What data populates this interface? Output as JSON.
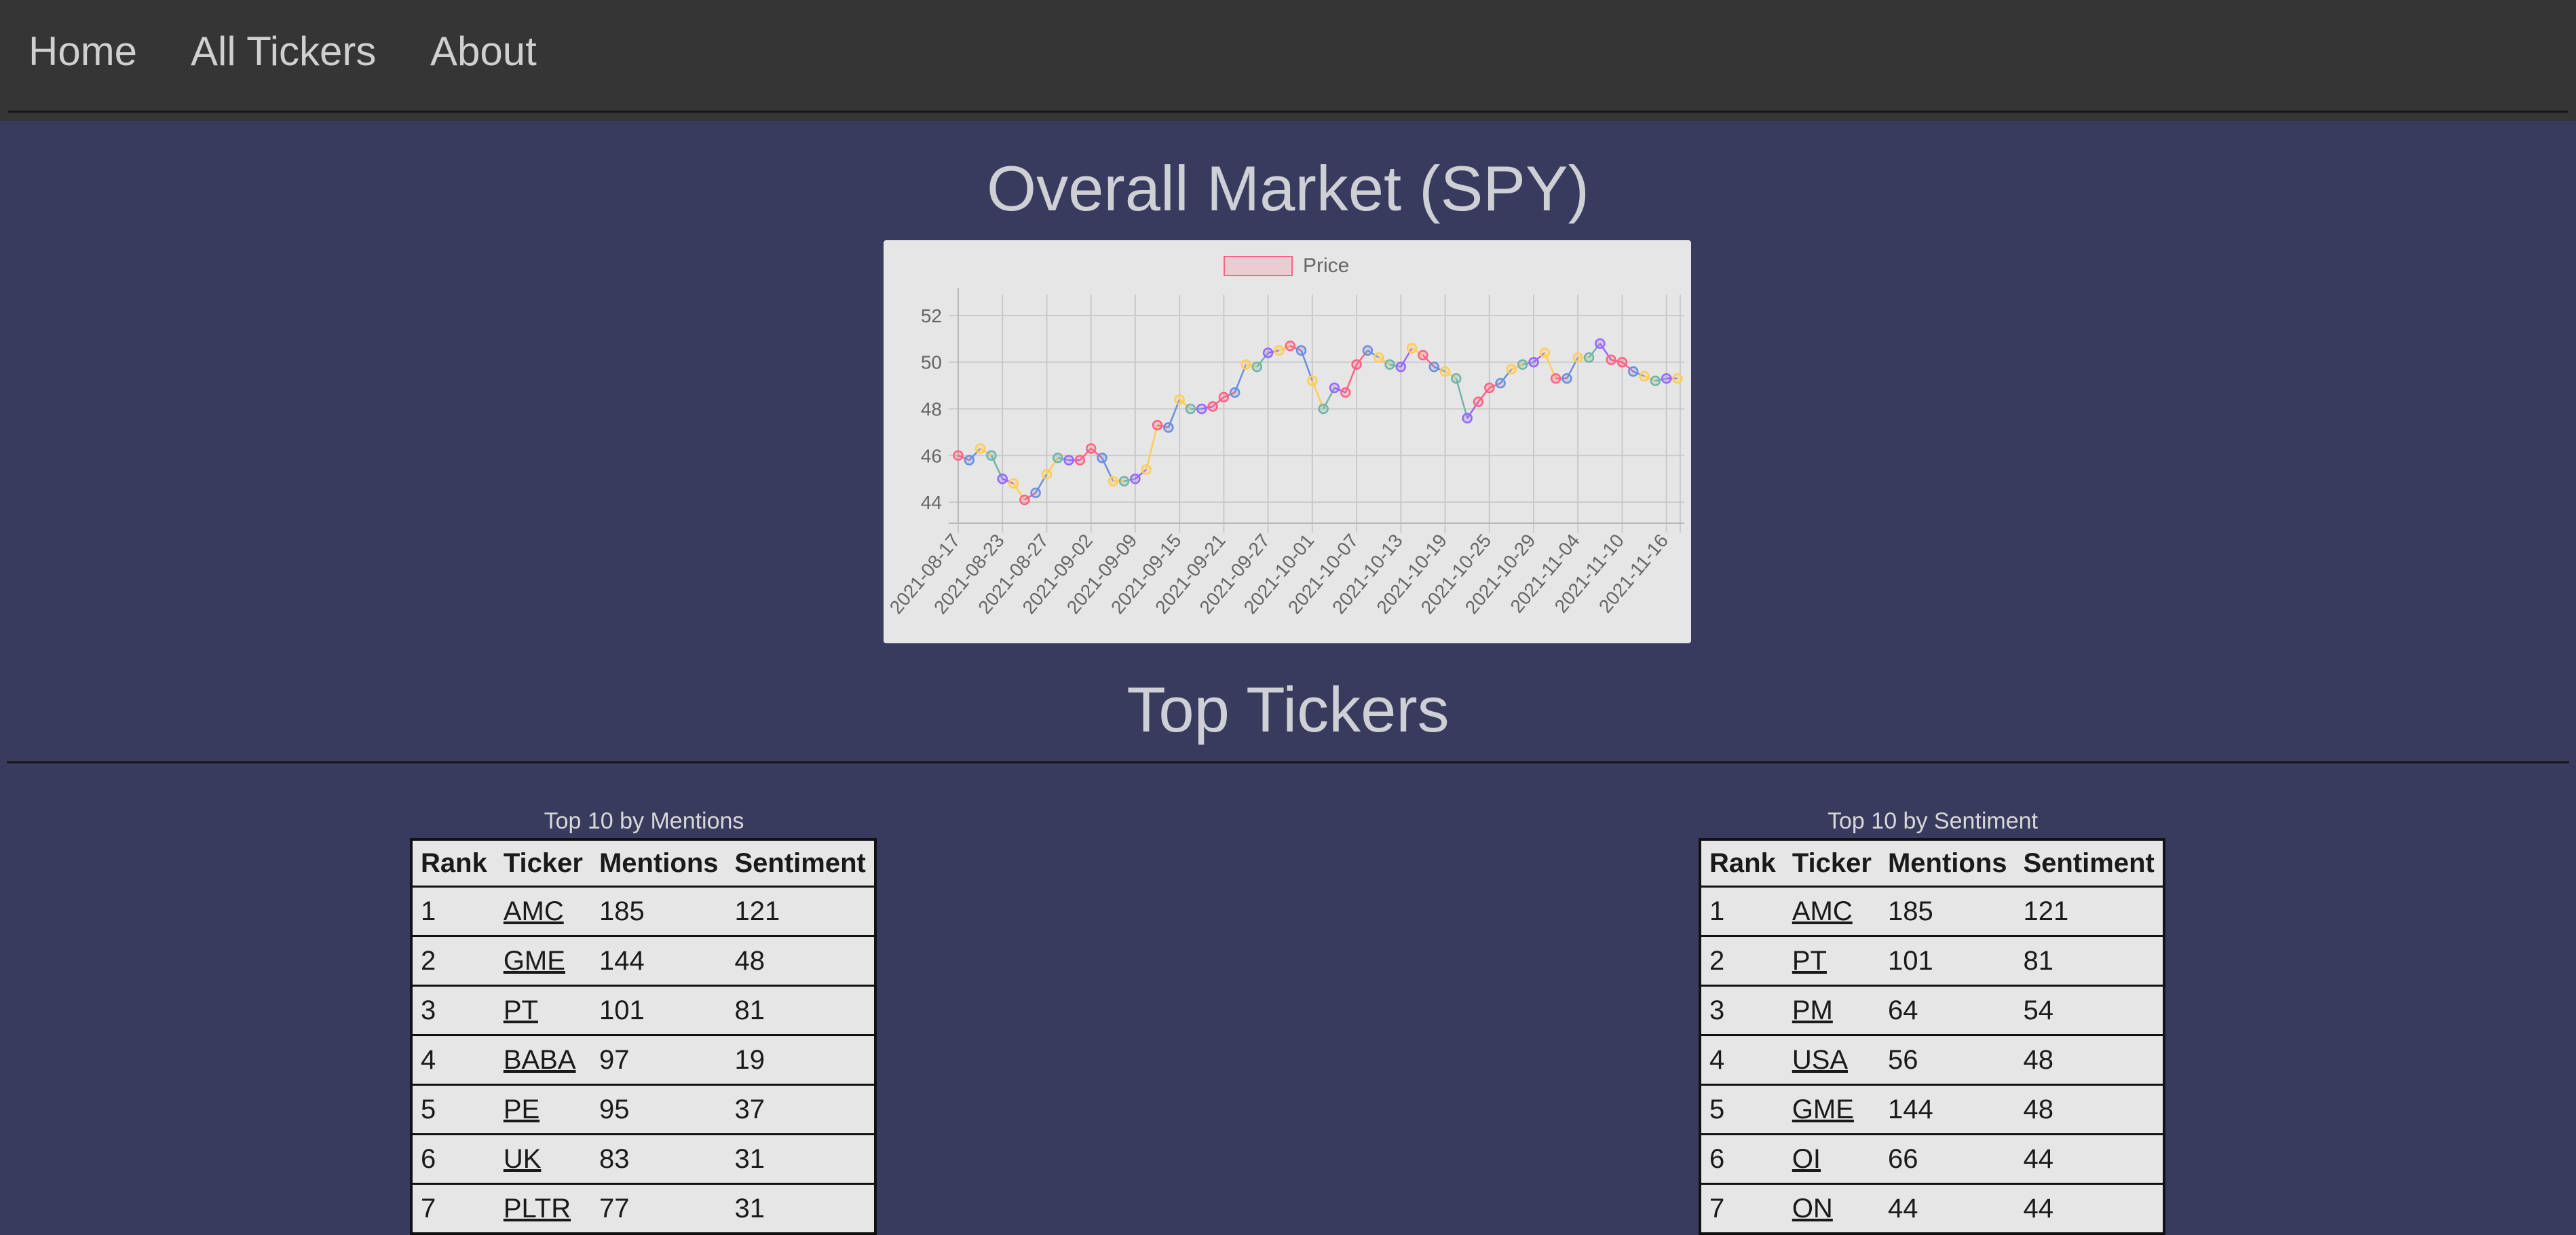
{
  "nav": {
    "home": "Home",
    "all_tickers": "All Tickers",
    "about": "About"
  },
  "market": {
    "title": "Overall Market (SPY)"
  },
  "chart_data": {
    "type": "line",
    "legend": "Price",
    "legend_position": "top-center",
    "grid": true,
    "ylim": [
      43.1,
      52.9
    ],
    "yticks": [
      44,
      46,
      48,
      50,
      52
    ],
    "xtick_labels": [
      "2021-08-17",
      "2021-08-23",
      "2021-08-27",
      "2021-09-02",
      "2021-09-09",
      "2021-09-15",
      "2021-09-21",
      "2021-09-27",
      "2021-10-01",
      "2021-10-07",
      "2021-10-13",
      "2021-10-19",
      "2021-10-25",
      "2021-10-29",
      "2021-11-04",
      "2021-11-10",
      "2021-11-16"
    ],
    "values": [
      46.0,
      45.8,
      46.3,
      46.0,
      45.0,
      44.8,
      44.1,
      44.4,
      45.2,
      45.9,
      45.8,
      45.8,
      46.3,
      45.9,
      44.9,
      44.9,
      45.0,
      45.4,
      47.3,
      47.2,
      48.4,
      48.0,
      48.0,
      48.1,
      48.5,
      48.7,
      49.9,
      49.8,
      50.4,
      50.5,
      50.7,
      50.5,
      49.2,
      48.0,
      48.9,
      48.7,
      49.9,
      50.5,
      50.2,
      49.9,
      49.8,
      50.6,
      50.3,
      49.8,
      49.6,
      49.3,
      47.6,
      48.3,
      48.9,
      49.1,
      49.7,
      49.9,
      50.0,
      50.4,
      49.3,
      49.3,
      50.2,
      50.2,
      50.8,
      50.1,
      50.0,
      49.6,
      49.4,
      49.2,
      49.3,
      49.3
    ],
    "point_colors": [
      "#ff6384",
      "#6a8fe0",
      "#ffcd56",
      "#72b4a8",
      "#9966ff",
      "#ffcd56",
      "#ff6384",
      "#6a8fe0",
      "#ffcd56",
      "#72b4a8",
      "#9966ff",
      "#ff6384",
      "#ff6384",
      "#6a8fe0",
      "#ffcd56",
      "#72b4a8",
      "#9966ff",
      "#ffcd56",
      "#ff6384",
      "#6a8fe0",
      "#ffcd56",
      "#72b4a8",
      "#9966ff",
      "#ff6384",
      "#ff6384",
      "#6a8fe0",
      "#ffcd56",
      "#72b4a8",
      "#9966ff",
      "#ffcd56",
      "#ff6384",
      "#6a8fe0",
      "#ffcd56",
      "#72b4a8",
      "#9966ff",
      "#ff6384",
      "#ff6384",
      "#6a8fe0",
      "#ffcd56",
      "#72b4a8",
      "#9966ff",
      "#ffcd56",
      "#ff6384",
      "#6a8fe0",
      "#ffcd56",
      "#72b4a8",
      "#9966ff",
      "#ff6384",
      "#ff6384",
      "#6a8fe0",
      "#ffcd56",
      "#72b4a8",
      "#9966ff",
      "#ffcd56",
      "#ff6384",
      "#6a8fe0",
      "#ffcd56",
      "#72b4a8",
      "#9966ff",
      "#ff6384",
      "#ff6384",
      "#6a8fe0",
      "#ffcd56",
      "#72b4a8",
      "#9966ff",
      "#ffcd56"
    ],
    "line_color": "#ff6384"
  },
  "top": {
    "title": "Top Tickers",
    "headers": [
      "Rank",
      "Ticker",
      "Mentions",
      "Sentiment"
    ],
    "by_mentions": {
      "caption": "Top 10 by Mentions",
      "rows": [
        {
          "rank": "1",
          "ticker": "AMC",
          "mentions": "185",
          "sentiment": "121"
        },
        {
          "rank": "2",
          "ticker": "GME",
          "mentions": "144",
          "sentiment": "48"
        },
        {
          "rank": "3",
          "ticker": "PT",
          "mentions": "101",
          "sentiment": "81"
        },
        {
          "rank": "4",
          "ticker": "BABA",
          "mentions": "97",
          "sentiment": "19"
        },
        {
          "rank": "5",
          "ticker": "PE",
          "mentions": "95",
          "sentiment": "37"
        },
        {
          "rank": "6",
          "ticker": "UK",
          "mentions": "83",
          "sentiment": "31"
        },
        {
          "rank": "7",
          "ticker": "PLTR",
          "mentions": "77",
          "sentiment": "31"
        }
      ]
    },
    "by_sentiment": {
      "caption": "Top 10 by Sentiment",
      "rows": [
        {
          "rank": "1",
          "ticker": "AMC",
          "mentions": "185",
          "sentiment": "121"
        },
        {
          "rank": "2",
          "ticker": "PT",
          "mentions": "101",
          "sentiment": "81"
        },
        {
          "rank": "3",
          "ticker": "PM",
          "mentions": "64",
          "sentiment": "54"
        },
        {
          "rank": "4",
          "ticker": "USA",
          "mentions": "56",
          "sentiment": "48"
        },
        {
          "rank": "5",
          "ticker": "GME",
          "mentions": "144",
          "sentiment": "48"
        },
        {
          "rank": "6",
          "ticker": "OI",
          "mentions": "66",
          "sentiment": "44"
        },
        {
          "rank": "7",
          "ticker": "ON",
          "mentions": "44",
          "sentiment": "44"
        }
      ]
    }
  }
}
